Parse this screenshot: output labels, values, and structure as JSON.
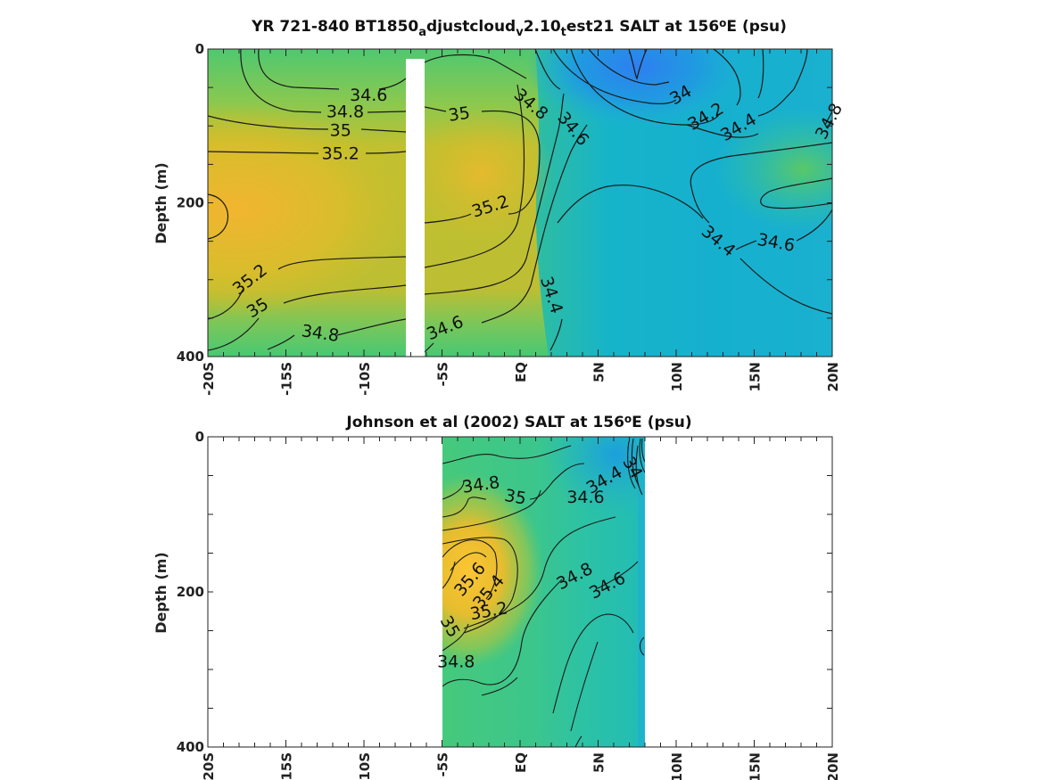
{
  "chart_data": [
    {
      "type": "heatmap",
      "title_segments": [
        {
          "t": "YR 721-840 BT1850"
        },
        {
          "t": "a",
          "sub": true
        },
        {
          "t": "djustcloud"
        },
        {
          "t": "v",
          "sub": true
        },
        {
          "t": "2.10"
        },
        {
          "t": "t",
          "sub": true
        },
        {
          "t": "est21 SALT at 156"
        },
        {
          "t": "o",
          "sup": true
        },
        {
          "t": "E (psu)"
        }
      ],
      "ylabel": "Depth (m)",
      "xlim": [
        -20,
        20
      ],
      "ylim": [
        0,
        400
      ],
      "x_ticks": [
        -20,
        -15,
        -10,
        -5,
        0,
        5,
        10,
        15,
        20
      ],
      "x_tick_labels": [
        "-20S",
        "-15S",
        "-10S",
        "-5S",
        "EQ",
        "5N",
        "10N",
        "15N",
        "20N"
      ],
      "y_ticks": [
        0,
        200,
        400
      ],
      "y_tick_labels": [
        "0",
        "200",
        "400"
      ],
      "data_gap_latitude": [
        -7.6,
        -6.4
      ],
      "contour_labels": [
        {
          "text": "34.6",
          "lat": -9.7,
          "depth": 60,
          "angle": 0
        },
        {
          "text": "34.8",
          "lat": -11.2,
          "depth": 82,
          "angle": 0
        },
        {
          "text": "35",
          "lat": -11.5,
          "depth": 106,
          "angle": 0
        },
        {
          "text": "35.2",
          "lat": -11.5,
          "depth": 136,
          "angle": 0
        },
        {
          "text": "35",
          "lat": -3.9,
          "depth": 85,
          "angle": -8
        },
        {
          "text": "35.2",
          "lat": -1.9,
          "depth": 205,
          "angle": -18
        },
        {
          "text": "34.8",
          "lat": 0.7,
          "depth": 72,
          "angle": 40
        },
        {
          "text": "34.6",
          "lat": 3.4,
          "depth": 104,
          "angle": 50
        },
        {
          "text": "34",
          "lat": 10.3,
          "depth": 60,
          "angle": -30
        },
        {
          "text": "34.2",
          "lat": 11.9,
          "depth": 88,
          "angle": -30
        },
        {
          "text": "34.4",
          "lat": 14.0,
          "depth": 102,
          "angle": -30
        },
        {
          "text": "34.8",
          "lat": 19.8,
          "depth": 94,
          "angle": -62
        },
        {
          "text": "34.6",
          "lat": 16.4,
          "depth": 252,
          "angle": 10
        },
        {
          "text": "34.4",
          "lat": 12.7,
          "depth": 250,
          "angle": 40
        },
        {
          "text": "34.4",
          "lat": 2.0,
          "depth": 320,
          "angle": 72
        },
        {
          "text": "35.2",
          "lat": -17.3,
          "depth": 300,
          "angle": -38
        },
        {
          "text": "35",
          "lat": -16.8,
          "depth": 337,
          "angle": -32
        },
        {
          "text": "34.8",
          "lat": -12.8,
          "depth": 370,
          "angle": 8
        },
        {
          "text": "34.6",
          "lat": -4.8,
          "depth": 363,
          "angle": -22
        }
      ]
    },
    {
      "type": "heatmap",
      "title_segments": [
        {
          "t": "Johnson et al (2002) SALT at 156"
        },
        {
          "t": "o",
          "sup": true
        },
        {
          "t": "E (psu)"
        }
      ],
      "ylabel": "Depth (m)",
      "xlim": [
        -20,
        20
      ],
      "ylim": [
        0,
        400
      ],
      "x_ticks": [
        -20,
        -15,
        -10,
        -5,
        0,
        5,
        10,
        15,
        20
      ],
      "x_tick_labels": [
        "-20S",
        "-15S",
        "-10S",
        "-5S",
        "EQ",
        "5N",
        "10N",
        "15N",
        "20N"
      ],
      "y_ticks": [
        0,
        200,
        400
      ],
      "y_tick_labels": [
        "0",
        "200",
        "400"
      ],
      "data_extent_latitude": [
        -5,
        8
      ],
      "contour_labels": [
        {
          "text": "34.8",
          "lat": -2.5,
          "depth": 62,
          "angle": -8
        },
        {
          "text": "35",
          "lat": -0.3,
          "depth": 78,
          "angle": 10
        },
        {
          "text": "34.4",
          "lat": 5.4,
          "depth": 56,
          "angle": -30
        },
        {
          "text": "34.6",
          "lat": 4.2,
          "depth": 78,
          "angle": 0
        },
        {
          "text": "34",
          "lat": 7.2,
          "depth": 40,
          "angle": 60
        },
        {
          "text": "35.6",
          "lat": -3.2,
          "depth": 184,
          "angle": -50
        },
        {
          "text": "35.4",
          "lat": -2.0,
          "depth": 200,
          "angle": -50
        },
        {
          "text": "35.2",
          "lat": -2.0,
          "depth": 225,
          "angle": -10
        },
        {
          "text": "35",
          "lat": -4.5,
          "depth": 245,
          "angle": 60
        },
        {
          "text": "34.8",
          "lat": 3.5,
          "depth": 180,
          "angle": -28
        },
        {
          "text": "34.6",
          "lat": 5.6,
          "depth": 192,
          "angle": -28
        },
        {
          "text": "34.8",
          "lat": -4.1,
          "depth": 290,
          "angle": 0
        }
      ]
    }
  ]
}
